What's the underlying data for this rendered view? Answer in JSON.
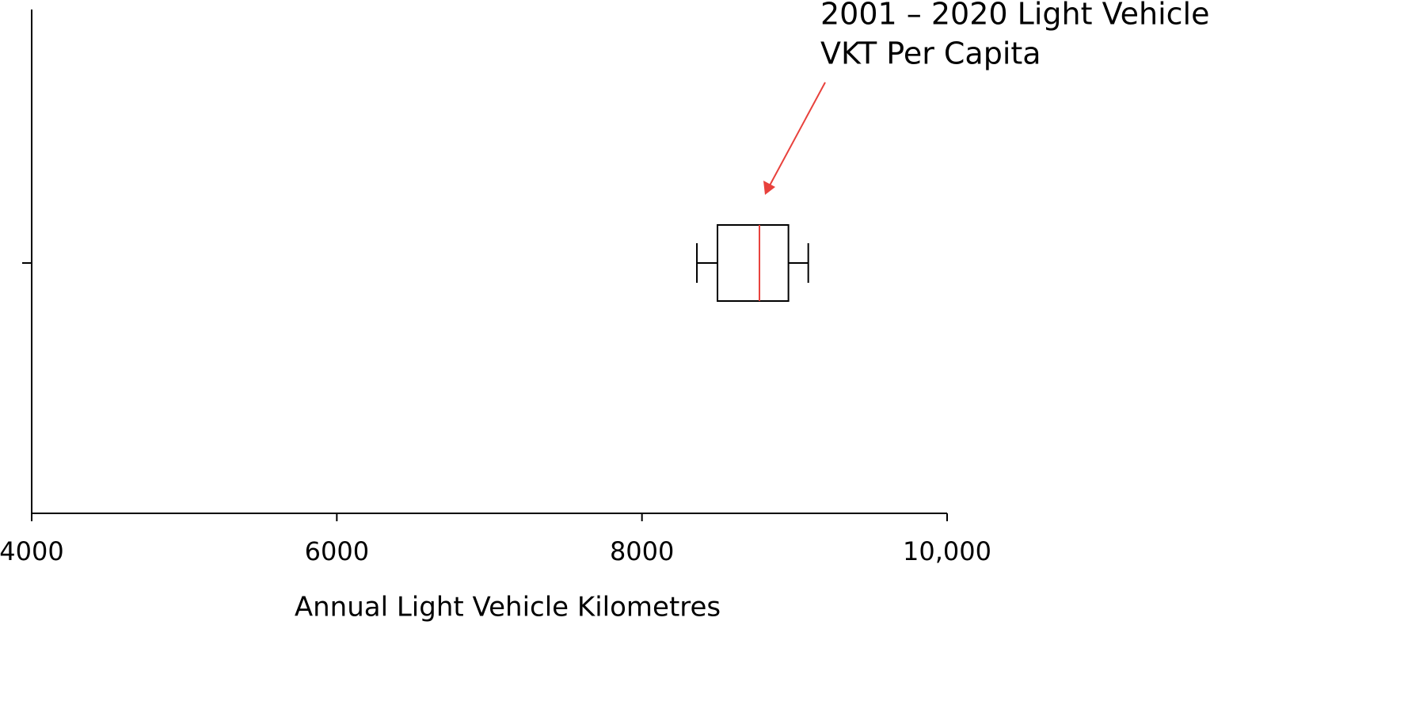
{
  "chart_data": {
    "type": "boxplot",
    "xlabel": "Annual Light Vehicle Kilometres",
    "annotation": [
      "2001 – 2020 Light Vehicle",
      "VKT Per Capita"
    ],
    "annotation_color": "#e8413c",
    "boxes": [
      {
        "whislo": 8360,
        "q1": 8495,
        "med": 8770,
        "q3": 8960,
        "whishi": 9090,
        "color": "#000000",
        "median_color": "#e8413c"
      }
    ],
    "xlim": [
      4000,
      10000
    ],
    "xticks": [
      4000,
      6000,
      8000,
      {
        "value": 10000,
        "label": "10,000"
      }
    ],
    "grid": false
  }
}
